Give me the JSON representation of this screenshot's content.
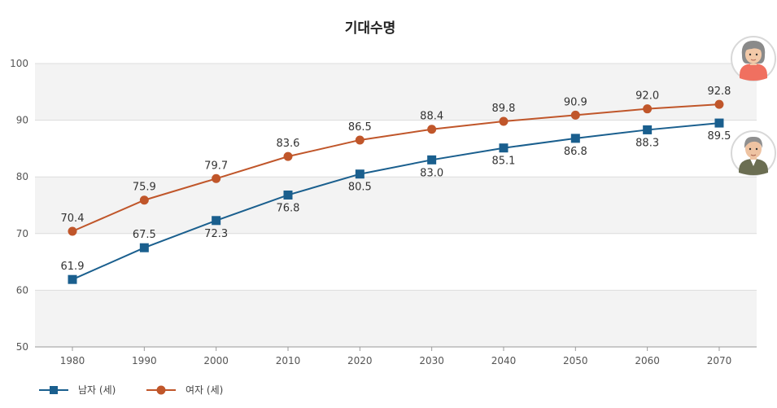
{
  "chart_data": {
    "type": "line",
    "title": "기대수명",
    "categories": [
      "1980",
      "1990",
      "2000",
      "2010",
      "2020",
      "2030",
      "2040",
      "2050",
      "2060",
      "2070"
    ],
    "ylim": [
      50,
      100
    ],
    "yticks": [
      "50",
      "60",
      "70",
      "80",
      "90",
      "100"
    ],
    "xlabel": "",
    "ylabel": "",
    "legend_position": "bottom-left",
    "series": [
      {
        "name": "남자 (세)",
        "marker": "square",
        "color": "#1a5f8e",
        "values": [
          61.9,
          67.5,
          72.3,
          76.8,
          80.5,
          83.0,
          85.1,
          86.8,
          88.3,
          89.5
        ],
        "labels": [
          "61.9",
          "67.5",
          "72.3",
          "76.8",
          "80.5",
          "83.0",
          "85.1",
          "86.8",
          "88.3",
          "89.5"
        ]
      },
      {
        "name": "여자 (세)",
        "marker": "circle",
        "color": "#c0562a",
        "values": [
          70.4,
          75.9,
          79.7,
          83.6,
          86.5,
          88.4,
          89.8,
          90.9,
          92.0,
          92.8
        ],
        "labels": [
          "70.4",
          "75.9",
          "79.7",
          "83.6",
          "86.5",
          "88.4",
          "89.8",
          "90.9",
          "92.0",
          "92.8"
        ]
      }
    ]
  },
  "icons": {
    "female": "female-avatar-icon",
    "male": "male-avatar-icon"
  }
}
